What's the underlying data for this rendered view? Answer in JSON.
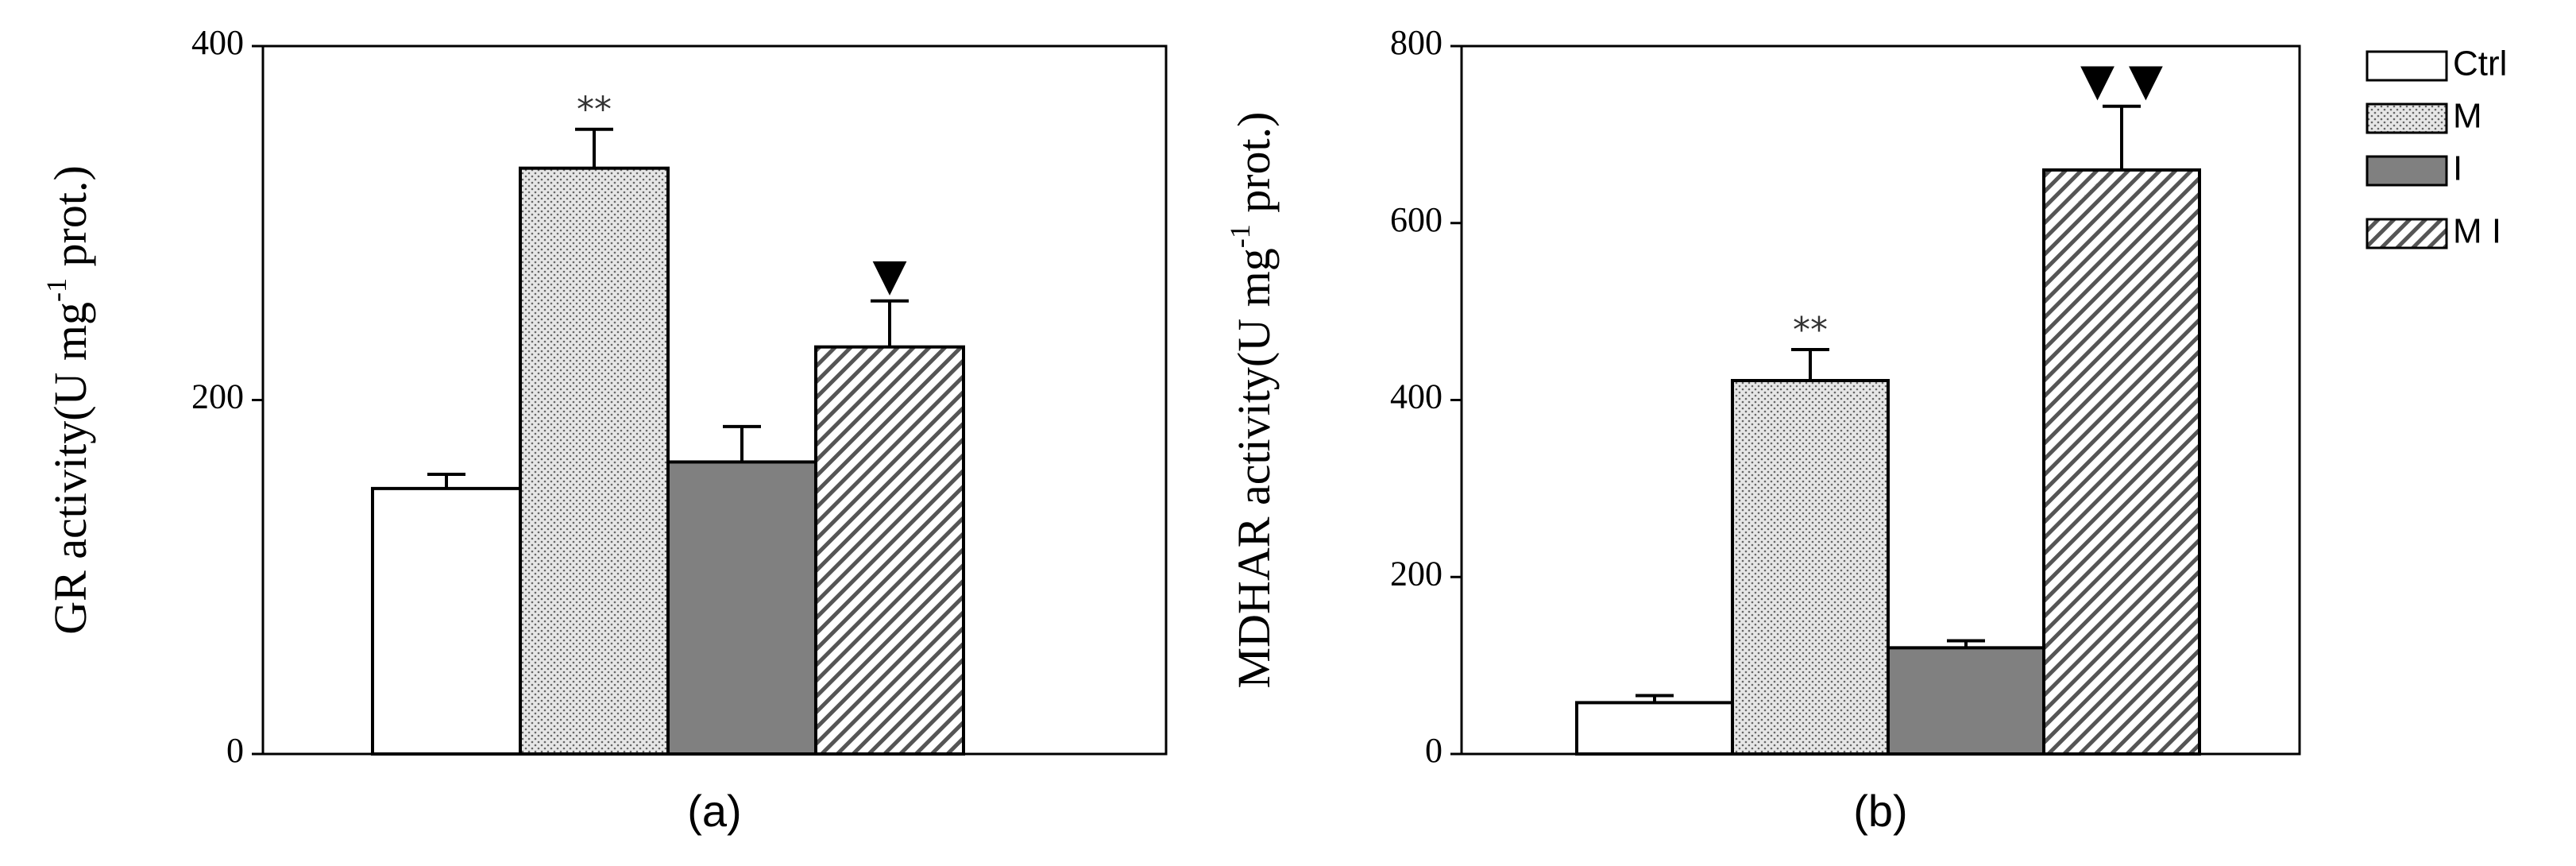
{
  "chart_data": [
    {
      "type": "bar",
      "label": "(a)",
      "ylabel": [
        "GR activity(U mg",
        "-1",
        " prot.)"
      ],
      "values": [
        150,
        331,
        165,
        230
      ],
      "errors": [
        8,
        22,
        20,
        26
      ],
      "annotations": [
        null,
        "**",
        null,
        "▼"
      ],
      "ylim": [
        0,
        400
      ],
      "yticks": [
        0,
        200,
        400
      ]
    },
    {
      "type": "bar",
      "label": "(b)",
      "ylabel": [
        "MDHAR activity(U mg",
        "-1",
        " prot.)"
      ],
      "values": [
        58,
        422,
        120,
        660
      ],
      "errors": [
        8,
        35,
        8,
        72
      ],
      "annotations": [
        null,
        "**",
        null,
        "▼ ▼"
      ],
      "ylim": [
        0,
        800
      ],
      "yticks": [
        0,
        200,
        400,
        600,
        800
      ]
    }
  ],
  "legend": {
    "items": [
      {
        "name": "Ctrl",
        "fill": "#ffffff"
      },
      {
        "name": "M",
        "fill": "dotted"
      },
      {
        "name": "I",
        "fill": "#808080"
      },
      {
        "name": "M I",
        "fill": "hatched"
      }
    ]
  }
}
